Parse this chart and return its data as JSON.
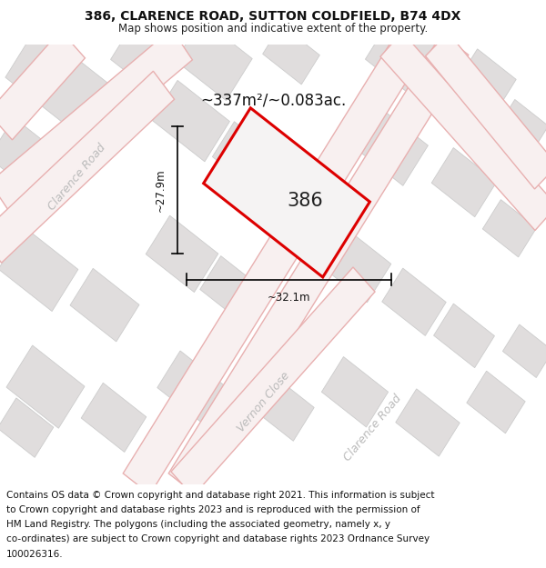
{
  "title": "386, CLARENCE ROAD, SUTTON COLDFIELD, B74 4DX",
  "subtitle": "Map shows position and indicative extent of the property.",
  "footer_line1": "Contains OS data © Crown copyright and database right 2021. This information is subject",
  "footer_line2": "to Crown copyright and database rights 2023 and is reproduced with the permission of",
  "footer_line3": "HM Land Registry. The polygons (including the associated geometry, namely x, y",
  "footer_line4": "co-ordinates) are subject to Crown copyright and database rights 2023 Ordnance Survey",
  "footer_line5": "100026316.",
  "area_text": "~337m²/~0.083ac.",
  "dim_width": "~32.1m",
  "dim_height": "~27.9m",
  "property_label": "386",
  "map_bg": "#f5f3f3",
  "building_color": "#e0dddd",
  "building_edge": "#cccccc",
  "road_fill_color": "#f8f0f0",
  "road_line_color": "#e8b0b0",
  "property_edge": "#dd0000",
  "title_fontsize": 10,
  "subtitle_fontsize": 8.5,
  "footer_fontsize": 7.5,
  "road_label_color": "#bbbbbb",
  "road_label_size": 9
}
